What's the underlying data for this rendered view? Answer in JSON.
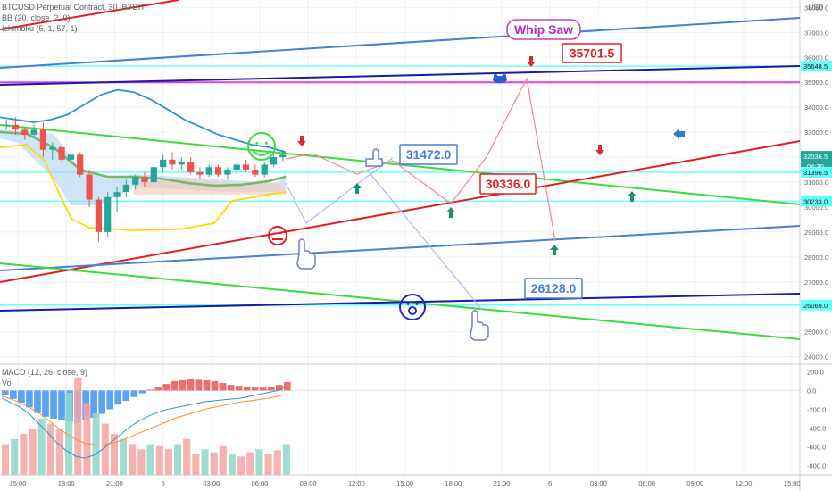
{
  "legends": {
    "symbol": "BTCUSD Perpetual Contract, 30, BYBIT",
    "bb": "BB (20, close, 2, 0)",
    "ichimoku": "Ichimoku (5, 1, 57, 1)",
    "macd": "MACD (12, 26, close, 9)",
    "vol": "Vol"
  },
  "currency": "USD",
  "annotations": {
    "whip_saw": "Whip Saw",
    "target_top": "35701.5",
    "target_mid": "31472.0",
    "target_red": "30336.0",
    "target_low": "26128.0"
  },
  "colors": {
    "up": "#26a69a",
    "down": "#ef5350",
    "cyan_line": "#66ffff",
    "blue_trend": "#4a7fd4",
    "navy_trend": "#1a1aa6",
    "magenta": "#e040e0",
    "green_trend": "#3ddc3d",
    "red_trend": "#e02020"
  },
  "chart_data": [
    {
      "type": "line",
      "title": "BTCUSD Perpetual Contract, 30, BYBIT",
      "y_unit": "USD",
      "y_ticks": [
        38000.0,
        37000.0,
        36000.0,
        35000.0,
        34000.0,
        33000.0,
        32000.0,
        31000.0,
        30000.0,
        29000.0,
        28000.0,
        27000.0,
        26000.0,
        25000.0,
        24000.0
      ],
      "ylim": [
        23700,
        38300
      ],
      "price_badges": [
        {
          "label": "35648.5",
          "value": 35648.5,
          "color": "#66ffff"
        },
        {
          "label": "32036.5",
          "value": 32036.5,
          "color": "#26a69a",
          "sub": "04:30"
        },
        {
          "label": "31396.5",
          "value": 31396.5,
          "color": "#66ffff"
        },
        {
          "label": "30233.0",
          "value": 30233.0,
          "color": "#66ffff"
        },
        {
          "label": "26069.0",
          "value": 26069.0,
          "color": "#66ffff"
        }
      ],
      "x_ticks": [
        "15:00",
        "18:00",
        "21:00",
        "5",
        "03:00",
        "06:00",
        "09:00",
        "12:00",
        "15:00",
        "18:00",
        "21:00",
        "6",
        "03:00",
        "06:00",
        "09:00",
        "12:00",
        "15:00"
      ],
      "horizontal_levels": [
        35648.5,
        31396.5,
        30233.0,
        26069.0
      ],
      "magenta_level": 35000,
      "trend_lines": [
        {
          "name": "red-top",
          "color": "#e02020",
          "p1": [
            "15:00",
            38200
          ],
          "p2": [
            "21:00",
            38600
          ]
        },
        {
          "name": "blue-upper",
          "color": "#4a7fd4",
          "p1": [
            "15:00",
            36050
          ],
          "p2": [
            "15:00+",
            38000
          ]
        },
        {
          "name": "navy-upper",
          "color": "#1a1aa6",
          "p1": [
            "15:00",
            35150
          ],
          "p2": [
            "15:00+",
            35990
          ]
        },
        {
          "name": "green-upper",
          "color": "#3ddc3d",
          "p1": [
            "15:00",
            33550
          ],
          "p2": [
            "15:00+",
            30200
          ]
        },
        {
          "name": "red-rising",
          "color": "#e02020",
          "p1": [
            "15:00",
            27200
          ],
          "p2": [
            "15:00+",
            32900
          ]
        },
        {
          "name": "blue-lower",
          "color": "#4a7fd4",
          "p1": [
            "15:00",
            27650
          ],
          "p2": [
            "15:00+",
            29400
          ]
        },
        {
          "name": "green-lower",
          "color": "#3ddc3d",
          "p1": [
            "15:00",
            27950
          ],
          "p2": [
            "15:00+",
            24800
          ]
        },
        {
          "name": "navy-lower",
          "color": "#1a1aa6",
          "p1": [
            "15:00",
            26050
          ],
          "p2": [
            "15:00+",
            26700
          ]
        }
      ],
      "bollinger_upper": [
        33600,
        33500,
        33400,
        33500,
        33700,
        34100,
        34500,
        34700,
        34600,
        34300,
        33900,
        33500,
        33200,
        32900,
        32700,
        32500,
        32400,
        32200
      ],
      "candles": [
        [
          33300,
          33500,
          33100,
          33300
        ],
        [
          33300,
          33600,
          32900,
          33100
        ],
        [
          33100,
          33200,
          32700,
          32900
        ],
        [
          32900,
          33300,
          32800,
          33100
        ],
        [
          33100,
          33400,
          32000,
          32300
        ],
        [
          32300,
          32600,
          31900,
          32400
        ],
        [
          32400,
          32500,
          31800,
          31900
        ],
        [
          31900,
          32200,
          31600,
          32100
        ],
        [
          32100,
          32200,
          31200,
          31300
        ],
        [
          31300,
          31500,
          30000,
          30300
        ],
        [
          30300,
          30400,
          28600,
          29000
        ],
        [
          29000,
          30600,
          28800,
          30400
        ],
        [
          30400,
          30800,
          29800,
          30600
        ],
        [
          30600,
          31100,
          30400,
          30900
        ],
        [
          30900,
          31300,
          30700,
          31200
        ],
        [
          31200,
          31400,
          30800,
          31000
        ],
        [
          31000,
          31700,
          30900,
          31600
        ],
        [
          31600,
          32100,
          31400,
          31900
        ],
        [
          31900,
          32200,
          31500,
          31700
        ],
        [
          31700,
          32000,
          31500,
          31800
        ],
        [
          31800,
          32000,
          31300,
          31400
        ],
        [
          31400,
          31600,
          31100,
          31300
        ],
        [
          31300,
          31700,
          31200,
          31600
        ],
        [
          31600,
          31700,
          31200,
          31300
        ],
        [
          31300,
          31600,
          31100,
          31500
        ],
        [
          31500,
          31800,
          31300,
          31700
        ],
        [
          31700,
          31900,
          31400,
          31500
        ],
        [
          31500,
          31700,
          31200,
          31300
        ],
        [
          31300,
          31800,
          31200,
          31700
        ],
        [
          31700,
          32100,
          31600,
          32000
        ],
        [
          32000,
          32300,
          31800,
          32100
        ]
      ]
    },
    {
      "type": "bar",
      "title": "MACD (12, 26, close, 9)",
      "y_ticks": [
        200.0,
        0.0,
        -200.0,
        -400.0,
        -600.0,
        -800.0
      ],
      "ylim": [
        -900,
        280
      ],
      "histogram": [
        -50,
        -90,
        -130,
        -180,
        -240,
        -280,
        -300,
        -320,
        -330,
        -340,
        -320,
        -290,
        -250,
        -200,
        -150,
        -110,
        -70,
        -30,
        10,
        40,
        70,
        100,
        110,
        120,
        115,
        110,
        100,
        80,
        60,
        50,
        40,
        30,
        30,
        40,
        60,
        90
      ],
      "macd_line": [
        -80,
        -130,
        -180,
        -250,
        -350,
        -450,
        -560,
        -640,
        -700,
        -720,
        -690,
        -620,
        -540,
        -460,
        -380,
        -320,
        -270,
        -230,
        -200,
        -180,
        -160,
        -140,
        -120,
        -110,
        -100,
        -90,
        -80,
        -60,
        -40,
        -20,
        0,
        50
      ],
      "signal_line": [
        -60,
        -90,
        -130,
        -180,
        -240,
        -310,
        -390,
        -460,
        -520,
        -560,
        -580,
        -580,
        -560,
        -530,
        -490,
        -450,
        -410,
        -370,
        -330,
        -290,
        -260,
        -230,
        -200,
        -180,
        -160,
        -140,
        -120,
        -110,
        -95,
        -80,
        -60,
        -40
      ],
      "volume": [
        0.3,
        0.35,
        0.4,
        0.45,
        0.55,
        0.5,
        0.45,
        0.8,
        0.95,
        0.7,
        0.6,
        0.5,
        0.4,
        0.35,
        0.3,
        0.25,
        0.3,
        0.28,
        0.25,
        0.3,
        0.35,
        0.2,
        0.25,
        0.22,
        0.28,
        0.2,
        0.18,
        0.22,
        0.25,
        0.2,
        0.24,
        0.3
      ]
    }
  ]
}
